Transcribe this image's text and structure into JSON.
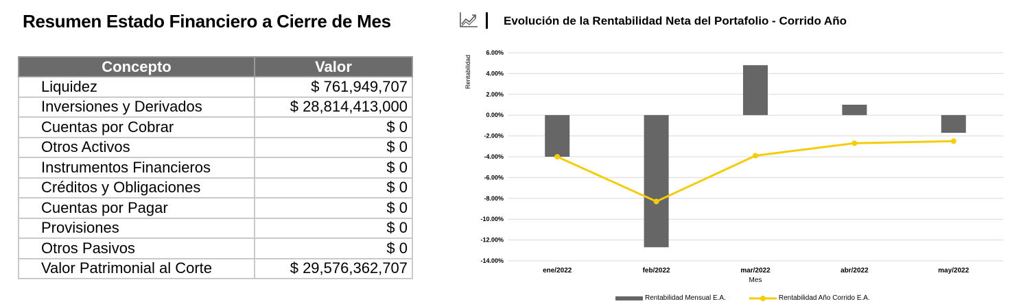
{
  "left": {
    "title": "Resumen Estado Financiero a Cierre de Mes",
    "table": {
      "headers": [
        "Concepto",
        "Valor"
      ],
      "rows": [
        [
          "Liquidez",
          "$ 761,949,707"
        ],
        [
          "Inversiones y Derivados",
          "$ 28,814,413,000"
        ],
        [
          "Cuentas por Cobrar",
          "$ 0"
        ],
        [
          "Otros Activos",
          "$ 0"
        ],
        [
          "Instrumentos Financieros",
          "$ 0"
        ],
        [
          "Créditos y Obligaciones",
          "$ 0"
        ],
        [
          "Cuentas por Pagar",
          "$ 0"
        ],
        [
          "Provisiones",
          "$ 0"
        ],
        [
          "Otros Pasivos",
          "$ 0"
        ],
        [
          "Valor Patrimonial al Corte",
          "$ 29,576,362,707"
        ]
      ]
    }
  },
  "right": {
    "title": "Evolución de la Rentabilidad Neta del Portafolio - Corrido Año",
    "icon": "trending-chart-icon"
  },
  "chart_data": {
    "type": "bar",
    "categories": [
      "ene/2022",
      "feb/2022",
      "mar/2022",
      "abr/2022",
      "may/2022"
    ],
    "series": [
      {
        "name": "Rentabilidad Mensual E.A.",
        "type": "bar",
        "color": "#666666",
        "values": [
          -4.0,
          -12.7,
          4.8,
          1.0,
          -1.7
        ]
      },
      {
        "name": "Rentabilidad Año Corrido E.A.",
        "type": "line",
        "color": "#f5cc0a",
        "values": [
          -4.0,
          -8.3,
          -3.9,
          -2.7,
          -2.5
        ]
      }
    ],
    "xlabel": "Mes",
    "ylabel": "Rentabilidad",
    "ylim": [
      -14,
      6
    ],
    "yticks": [
      "6.00%",
      "4.00%",
      "2.00%",
      "0.00%",
      "-2.00%",
      "-4.00%",
      "-6.00%",
      "-8.00%",
      "-10.00%",
      "-12.00%",
      "-14.00%"
    ],
    "grid": true,
    "legend_position": "bottom"
  }
}
